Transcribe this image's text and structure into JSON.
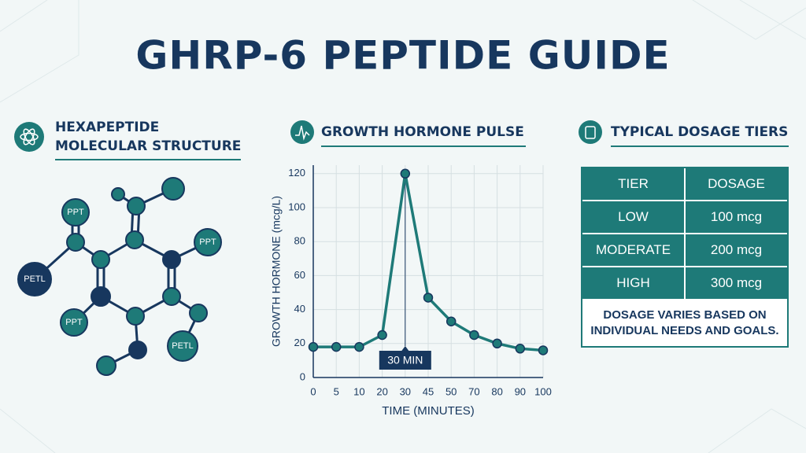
{
  "title": "GHRP-6 PEPTIDE GUIDE",
  "molecule": {
    "heading": [
      "HEXAPEPTIDE",
      "MOLECULAR STRUCTURE"
    ],
    "labels": [
      "PPT",
      "PETL",
      "PPT",
      "PPT",
      "PETL"
    ]
  },
  "chart_data": {
    "type": "line",
    "title": "GROWTH HORMONE PULSE",
    "x_label": "TIME (MINUTES)",
    "y_label": "GROWTH HORMONE (mcg/L)",
    "categories": [
      "0",
      "5",
      "10",
      "20",
      "30",
      "45",
      "50",
      "70",
      "80",
      "90",
      "100"
    ],
    "values": [
      18,
      18,
      18,
      25,
      120,
      47,
      33,
      25,
      20,
      17,
      16
    ],
    "color": "#1e7a78",
    "ylim": [
      0,
      125
    ],
    "yticks": [
      0,
      20,
      40,
      60,
      80,
      100,
      120
    ],
    "grid": true,
    "annotation": {
      "text": "30 MIN",
      "x": "30"
    }
  },
  "dosage": {
    "heading": "TYPICAL DOSAGE TIERS",
    "columns": [
      "TIER",
      "DOSAGE"
    ],
    "rows": [
      [
        "LOW",
        "100 mcg"
      ],
      [
        "MODERATE",
        "200 mcg"
      ],
      [
        "HIGH",
        "300 mcg"
      ]
    ],
    "note": [
      "DOSAGE VARIES BASED ON",
      "INDIVIDUAL NEEDS AND GOALS."
    ]
  }
}
